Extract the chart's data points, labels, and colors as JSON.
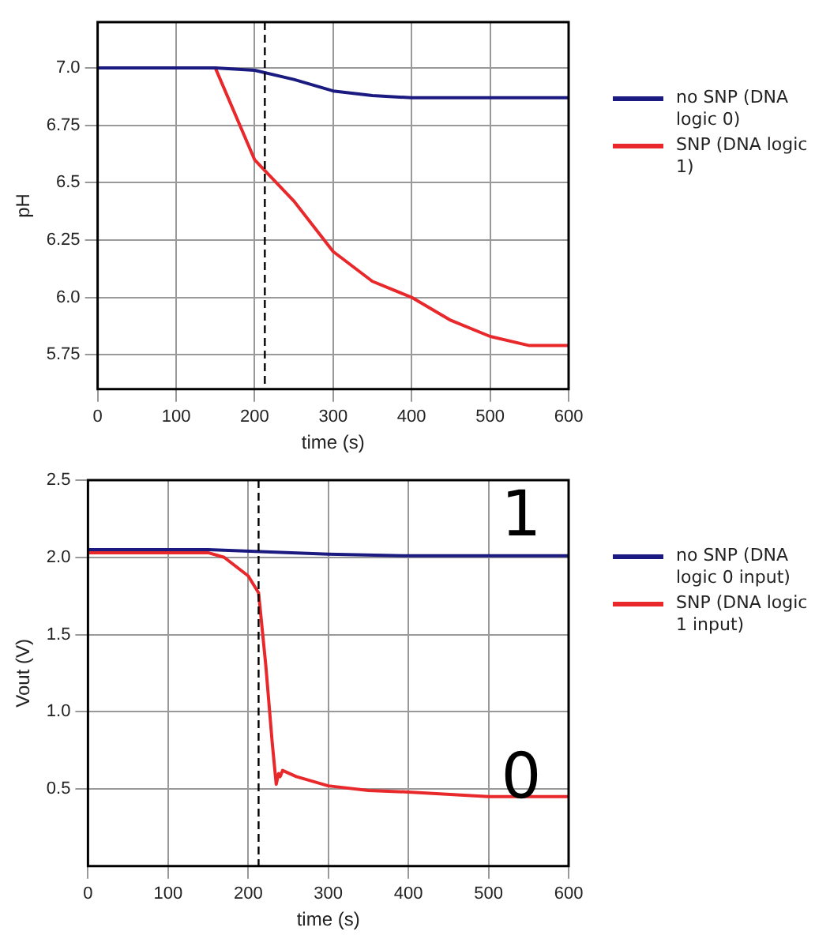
{
  "chart_data": [
    {
      "type": "line",
      "xlabel": "time (s)",
      "ylabel": "pH",
      "xlim": [
        0,
        600
      ],
      "xticks": [
        0,
        100,
        200,
        300,
        400,
        500,
        600
      ],
      "ylim": [
        5.6,
        7.2
      ],
      "yticks": [
        {
          "value": 5.75,
          "label": "5.75"
        },
        {
          "value": 6,
          "label": "6.0"
        },
        {
          "value": 6.25,
          "label": "6.25"
        },
        {
          "value": 6.5,
          "label": "6.5"
        },
        {
          "value": 6.75,
          "label": "6.75"
        },
        {
          "value": 7,
          "label": "7.0"
        }
      ],
      "grid": true,
      "legend": "right",
      "marker": "none",
      "ref_lines": [
        {
          "axis": "x",
          "value": 213,
          "line_style": "dashed",
          "color": "#000000"
        }
      ],
      "series": [
        {
          "name": "no SNP (DNA logic 0)",
          "color": "#1a1a80",
          "x": [
            0,
            150,
            200,
            250,
            300,
            350,
            400,
            600
          ],
          "values": [
            7.0,
            7.0,
            6.99,
            6.95,
            6.9,
            6.88,
            6.87,
            6.87
          ]
        },
        {
          "name": "SNP (DNA logic 1)",
          "color": "#e8282a",
          "x": [
            0,
            150,
            200,
            250,
            300,
            350,
            400,
            450,
            500,
            550,
            600
          ],
          "values": [
            7.0,
            7.0,
            6.6,
            6.42,
            6.2,
            6.07,
            6.0,
            5.9,
            5.83,
            5.79,
            5.79
          ]
        }
      ]
    },
    {
      "type": "line",
      "xlabel": "time (s)",
      "ylabel": "Vout (V)",
      "xlim": [
        0,
        600
      ],
      "xticks": [
        0,
        100,
        200,
        300,
        400,
        500,
        600
      ],
      "ylim": [
        0,
        2.5
      ],
      "yticks": [
        {
          "value": 0.5,
          "label": "0.5"
        },
        {
          "value": 1,
          "label": "1.0"
        },
        {
          "value": 1.5,
          "label": "1.5"
        },
        {
          "value": 2,
          "label": "2.0"
        },
        {
          "value": 2.5,
          "label": "2.5"
        }
      ],
      "grid": true,
      "legend": "right",
      "marker": "none",
      "ref_lines": [
        {
          "axis": "x",
          "value": 213,
          "line_style": "dashed",
          "color": "#000000"
        }
      ],
      "annotations": [
        "1",
        "0"
      ],
      "series": [
        {
          "name": "no SNP (DNA logic 0 input)",
          "color": "#1a1a80",
          "x": [
            0,
            150,
            300,
            400,
            600
          ],
          "values": [
            2.05,
            2.05,
            2.02,
            2.01,
            2.01
          ]
        },
        {
          "name": "SNP (DNA logic 1 input)",
          "color": "#e8282a",
          "x": [
            0,
            150,
            170,
            200,
            213,
            222,
            230,
            235,
            238,
            240,
            243,
            260,
            300,
            350,
            400,
            500,
            600
          ],
          "values": [
            2.03,
            2.03,
            2.0,
            1.88,
            1.77,
            1.3,
            0.8,
            0.53,
            0.6,
            0.58,
            0.62,
            0.58,
            0.52,
            0.49,
            0.48,
            0.45,
            0.45
          ]
        }
      ]
    }
  ]
}
